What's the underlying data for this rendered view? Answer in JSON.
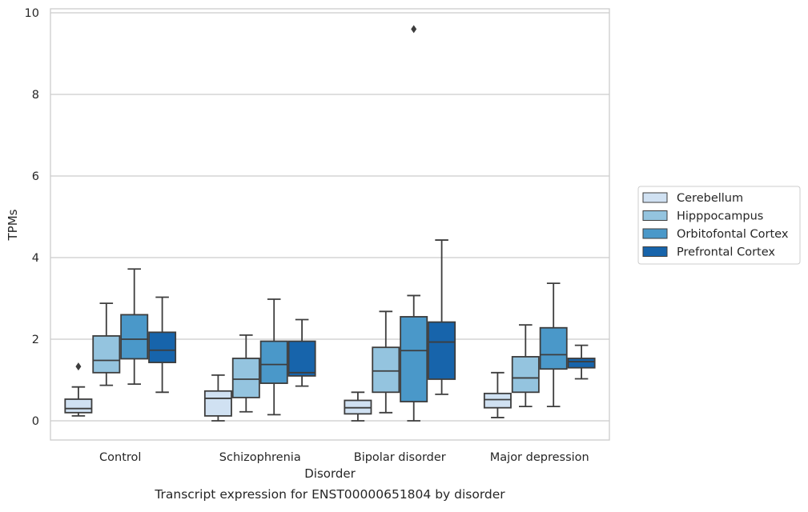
{
  "chart_data": {
    "type": "box",
    "xlabel": "Disorder",
    "ylabel": "TPMs",
    "caption": "Transcript expression for ENST00000651804 by disorder",
    "ylim": [
      -0.45,
      10.1
    ],
    "yticks": [
      0,
      2,
      4,
      6,
      8,
      10
    ],
    "grid": "horizontal",
    "legend_position": "right",
    "categories": [
      "Control",
      "Schizophrenia",
      "Bipolar disorder",
      "Major depression"
    ],
    "series": [
      {
        "name": "Cerebellum",
        "color": "#d0e1f2",
        "boxes": [
          {
            "whislo": 0.12,
            "q1": 0.2,
            "med": 0.3,
            "q3": 0.53,
            "whishi": 0.83,
            "fliers": [
              1.33
            ]
          },
          {
            "whislo": 0.0,
            "q1": 0.12,
            "med": 0.55,
            "q3": 0.73,
            "whishi": 1.12,
            "fliers": []
          },
          {
            "whislo": 0.0,
            "q1": 0.17,
            "med": 0.32,
            "q3": 0.5,
            "whishi": 0.7,
            "fliers": []
          },
          {
            "whislo": 0.08,
            "q1": 0.32,
            "med": 0.52,
            "q3": 0.67,
            "whishi": 1.18,
            "fliers": []
          }
        ]
      },
      {
        "name": "Hipppocampus",
        "color": "#94c4df",
        "boxes": [
          {
            "whislo": 0.87,
            "q1": 1.18,
            "med": 1.48,
            "q3": 2.08,
            "whishi": 2.88,
            "fliers": []
          },
          {
            "whislo": 0.22,
            "q1": 0.57,
            "med": 1.02,
            "q3": 1.53,
            "whishi": 2.1,
            "fliers": []
          },
          {
            "whislo": 0.2,
            "q1": 0.7,
            "med": 1.22,
            "q3": 1.8,
            "whishi": 2.68,
            "fliers": []
          },
          {
            "whislo": 0.35,
            "q1": 0.7,
            "med": 1.05,
            "q3": 1.57,
            "whishi": 2.35,
            "fliers": []
          }
        ]
      },
      {
        "name": "Orbitofontal Cortex",
        "color": "#4a98c9",
        "boxes": [
          {
            "whislo": 0.9,
            "q1": 1.52,
            "med": 2.0,
            "q3": 2.6,
            "whishi": 3.72,
            "fliers": []
          },
          {
            "whislo": 0.15,
            "q1": 0.92,
            "med": 1.38,
            "q3": 1.95,
            "whishi": 2.98,
            "fliers": []
          },
          {
            "whislo": 0.0,
            "q1": 0.47,
            "med": 1.72,
            "q3": 2.55,
            "whishi": 3.07,
            "fliers": [
              9.6
            ]
          },
          {
            "whislo": 0.35,
            "q1": 1.27,
            "med": 1.62,
            "q3": 2.28,
            "whishi": 3.37,
            "fliers": []
          }
        ]
      },
      {
        "name": "Prefrontal Cortex",
        "color": "#1764ab",
        "boxes": [
          {
            "whislo": 0.7,
            "q1": 1.43,
            "med": 1.73,
            "q3": 2.17,
            "whishi": 3.03,
            "fliers": []
          },
          {
            "whislo": 0.85,
            "q1": 1.1,
            "med": 1.18,
            "q3": 1.95,
            "whishi": 2.48,
            "fliers": []
          },
          {
            "whislo": 0.65,
            "q1": 1.02,
            "med": 1.93,
            "q3": 2.42,
            "whishi": 4.43,
            "fliers": []
          },
          {
            "whislo": 1.03,
            "q1": 1.3,
            "med": 1.45,
            "q3": 1.53,
            "whishi": 1.85,
            "fliers": []
          }
        ]
      }
    ]
  }
}
